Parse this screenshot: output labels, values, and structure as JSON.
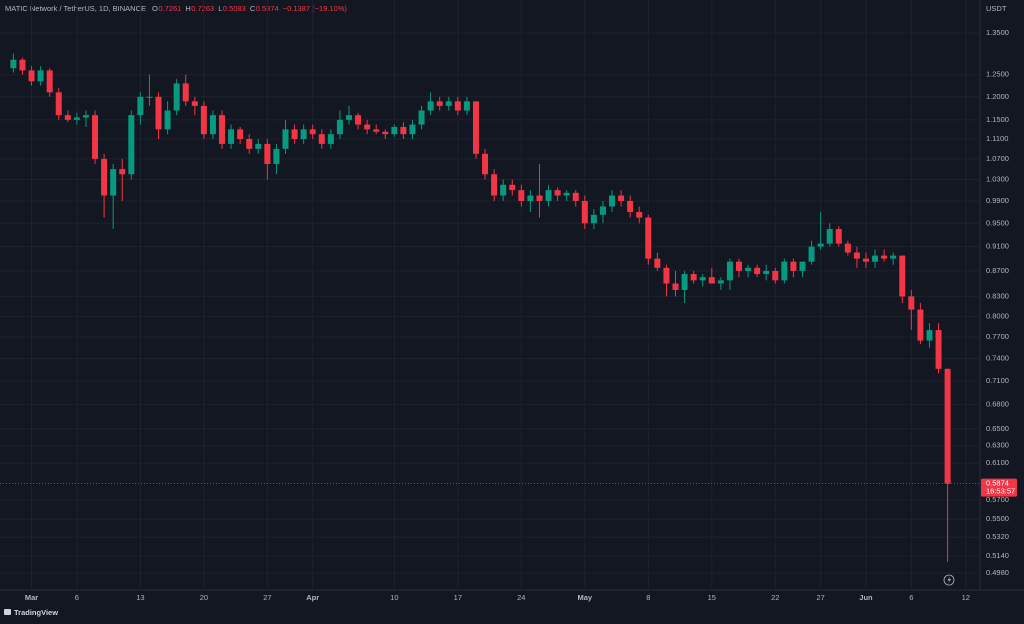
{
  "chart_data": {
    "type": "candlestick",
    "title": "MATIC Network / TetherUS, 1D, BINANCE",
    "ohlc_keys": [
      "O",
      "H",
      "L",
      "C"
    ],
    "change_label": "−0.1387 (−19.10%)",
    "currency": "USDT",
    "last_price_label": "0.5874",
    "countdown": "16:53:57",
    "brand": "TradingView",
    "up_color": "#089981",
    "down_color": "#f23645",
    "log_scale": true,
    "grid": true,
    "x": [
      "Feb 27",
      "Feb 28",
      "Mar 1",
      "Mar 2",
      "Mar 3",
      "Mar 4",
      "Mar 5",
      "Mar 6",
      "Mar 7",
      "Mar 8",
      "Mar 9",
      "Mar 10",
      "Mar 11",
      "Mar 12",
      "Mar 13",
      "Mar 14",
      "Mar 15",
      "Mar 16",
      "Mar 17",
      "Mar 18",
      "Mar 19",
      "Mar 20",
      "Mar 21",
      "Mar 22",
      "Mar 23",
      "Mar 24",
      "Mar 25",
      "Mar 26",
      "Mar 27",
      "Mar 28",
      "Mar 29",
      "Mar 30",
      "Mar 31",
      "Apr 1",
      "Apr 2",
      "Apr 3",
      "Apr 4",
      "Apr 5",
      "Apr 6",
      "Apr 7",
      "Apr 8",
      "Apr 9",
      "Apr 10",
      "Apr 11",
      "Apr 12",
      "Apr 13",
      "Apr 14",
      "Apr 15",
      "Apr 16",
      "Apr 17",
      "Apr 18",
      "Apr 19",
      "Apr 20",
      "Apr 21",
      "Apr 22",
      "Apr 23",
      "Apr 24",
      "Apr 25",
      "Apr 26",
      "Apr 27",
      "Apr 28",
      "Apr 29",
      "Apr 30",
      "May 1",
      "May 2",
      "May 3",
      "May 4",
      "May 5",
      "May 6",
      "May 7",
      "May 8",
      "May 9",
      "May 10",
      "May 11",
      "May 12",
      "May 13",
      "May 14",
      "May 15",
      "May 16",
      "May 17",
      "May 18",
      "May 19",
      "May 20",
      "May 21",
      "May 22",
      "May 23",
      "May 24",
      "May 25",
      "May 26",
      "May 27",
      "May 28",
      "May 29",
      "May 30",
      "May 31",
      "Jun 1",
      "Jun 2",
      "Jun 3",
      "Jun 4",
      "Jun 5",
      "Jun 6",
      "Jun 7",
      "Jun 8",
      "Jun 9",
      "Jun 10"
    ],
    "open": [
      1.265,
      1.285,
      1.26,
      1.235,
      1.26,
      1.21,
      1.16,
      1.15,
      1.155,
      1.16,
      1.07,
      1.0,
      1.05,
      1.04,
      1.16,
      1.2,
      1.2,
      1.13,
      1.17,
      1.23,
      1.19,
      1.18,
      1.12,
      1.16,
      1.1,
      1.13,
      1.11,
      1.09,
      1.1,
      1.06,
      1.09,
      1.13,
      1.11,
      1.13,
      1.12,
      1.1,
      1.12,
      1.15,
      1.16,
      1.14,
      1.13,
      1.125,
      1.12,
      1.135,
      1.12,
      1.14,
      1.17,
      1.19,
      1.18,
      1.19,
      1.17,
      1.19,
      1.08,
      1.04,
      1.0,
      1.02,
      1.01,
      0.99,
      1.0,
      0.99,
      1.01,
      1.0,
      1.005,
      0.99,
      0.95,
      0.965,
      0.98,
      1.0,
      0.99,
      0.97,
      0.96,
      0.89,
      0.875,
      0.85,
      0.84,
      0.865,
      0.855,
      0.86,
      0.85,
      0.855,
      0.885,
      0.87,
      0.875,
      0.865,
      0.87,
      0.855,
      0.885,
      0.87,
      0.885,
      0.91,
      0.915,
      0.94,
      0.915,
      0.9,
      0.89,
      0.885,
      0.895,
      0.89,
      0.895,
      0.83,
      0.81,
      0.765,
      0.78,
      0.7261
    ],
    "high": [
      1.3,
      1.29,
      1.27,
      1.27,
      1.265,
      1.22,
      1.17,
      1.165,
      1.17,
      1.17,
      1.08,
      1.06,
      1.07,
      1.17,
      1.21,
      1.25,
      1.21,
      1.19,
      1.24,
      1.25,
      1.2,
      1.19,
      1.17,
      1.17,
      1.14,
      1.135,
      1.12,
      1.11,
      1.11,
      1.1,
      1.15,
      1.14,
      1.14,
      1.14,
      1.13,
      1.13,
      1.17,
      1.18,
      1.165,
      1.15,
      1.14,
      1.13,
      1.14,
      1.145,
      1.15,
      1.18,
      1.21,
      1.2,
      1.2,
      1.2,
      1.2,
      1.19,
      1.09,
      1.05,
      1.03,
      1.03,
      1.02,
      1.01,
      1.06,
      1.02,
      1.015,
      1.01,
      1.01,
      1.0,
      0.975,
      0.99,
      1.01,
      1.01,
      1.0,
      0.98,
      0.965,
      0.9,
      0.88,
      0.87,
      0.87,
      0.87,
      0.865,
      0.875,
      0.86,
      0.89,
      0.89,
      0.88,
      0.88,
      0.88,
      0.875,
      0.89,
      0.89,
      0.885,
      0.92,
      0.97,
      0.95,
      0.945,
      0.92,
      0.91,
      0.9,
      0.905,
      0.905,
      0.9,
      0.895,
      0.84,
      0.82,
      0.79,
      0.79,
      0.7263
    ],
    "low": [
      1.255,
      1.25,
      1.225,
      1.225,
      1.2,
      1.15,
      1.145,
      1.14,
      1.135,
      1.06,
      0.96,
      0.94,
      0.99,
      1.03,
      1.14,
      1.18,
      1.11,
      1.12,
      1.16,
      1.18,
      1.16,
      1.11,
      1.11,
      1.09,
      1.09,
      1.1,
      1.08,
      1.08,
      1.03,
      1.04,
      1.08,
      1.1,
      1.1,
      1.11,
      1.09,
      1.09,
      1.11,
      1.14,
      1.13,
      1.12,
      1.12,
      1.11,
      1.115,
      1.11,
      1.11,
      1.13,
      1.16,
      1.17,
      1.17,
      1.16,
      1.16,
      1.07,
      1.03,
      0.99,
      0.99,
      1.0,
      0.98,
      0.97,
      0.96,
      0.98,
      0.99,
      0.99,
      0.98,
      0.94,
      0.94,
      0.95,
      0.97,
      0.98,
      0.96,
      0.95,
      0.88,
      0.87,
      0.83,
      0.83,
      0.82,
      0.85,
      0.845,
      0.85,
      0.84,
      0.84,
      0.86,
      0.86,
      0.86,
      0.855,
      0.85,
      0.85,
      0.86,
      0.86,
      0.88,
      0.905,
      0.91,
      0.91,
      0.895,
      0.875,
      0.875,
      0.875,
      0.885,
      0.88,
      0.82,
      0.78,
      0.76,
      0.755,
      0.72,
      0.5083
    ],
    "close": [
      1.285,
      1.26,
      1.235,
      1.26,
      1.21,
      1.16,
      1.15,
      1.155,
      1.16,
      1.07,
      1.0,
      1.05,
      1.04,
      1.16,
      1.2,
      1.2,
      1.13,
      1.17,
      1.23,
      1.19,
      1.18,
      1.12,
      1.16,
      1.1,
      1.13,
      1.11,
      1.09,
      1.1,
      1.06,
      1.09,
      1.13,
      1.11,
      1.13,
      1.12,
      1.1,
      1.12,
      1.15,
      1.16,
      1.14,
      1.13,
      1.125,
      1.12,
      1.135,
      1.12,
      1.14,
      1.17,
      1.19,
      1.18,
      1.19,
      1.17,
      1.19,
      1.08,
      1.04,
      1.0,
      1.02,
      1.01,
      0.99,
      1.0,
      0.99,
      1.01,
      1.0,
      1.005,
      0.99,
      0.95,
      0.965,
      0.98,
      1.0,
      0.99,
      0.97,
      0.96,
      0.89,
      0.875,
      0.85,
      0.84,
      0.865,
      0.855,
      0.86,
      0.85,
      0.855,
      0.885,
      0.87,
      0.875,
      0.865,
      0.87,
      0.855,
      0.885,
      0.87,
      0.885,
      0.91,
      0.915,
      0.94,
      0.915,
      0.9,
      0.89,
      0.885,
      0.895,
      0.89,
      0.895,
      0.83,
      0.81,
      0.765,
      0.78,
      0.7261,
      0.5874
    ],
    "ylim": [
      0.4826,
      1.388
    ],
    "yticks": [
      {
        "value": 1.35,
        "label": "1.3500"
      },
      {
        "value": 1.25,
        "label": "1.2500"
      },
      {
        "value": 1.2,
        "label": "1.2000"
      },
      {
        "value": 1.15,
        "label": "1.1500"
      },
      {
        "value": 1.11,
        "label": "1.1100"
      },
      {
        "value": 1.07,
        "label": "1.0700"
      },
      {
        "value": 1.03,
        "label": "1.0300"
      },
      {
        "value": 0.99,
        "label": "0.9900"
      },
      {
        "value": 0.95,
        "label": "0.9500"
      },
      {
        "value": 0.91,
        "label": "0.9100"
      },
      {
        "value": 0.87,
        "label": "0.8700"
      },
      {
        "value": 0.83,
        "label": "0.8300"
      },
      {
        "value": 0.8,
        "label": "0.8000"
      },
      {
        "value": 0.77,
        "label": "0.7700"
      },
      {
        "value": 0.74,
        "label": "0.7400"
      },
      {
        "value": 0.71,
        "label": "0.7100"
      },
      {
        "value": 0.68,
        "label": "0.6800"
      },
      {
        "value": 0.65,
        "label": "0.6500"
      },
      {
        "value": 0.63,
        "label": "0.6300"
      },
      {
        "value": 0.61,
        "label": "0.6100"
      },
      {
        "value": 0.57,
        "label": "0.5700"
      },
      {
        "value": 0.55,
        "label": "0.5500"
      },
      {
        "value": 0.532,
        "label": "0.5320"
      },
      {
        "value": 0.514,
        "label": "0.5140"
      },
      {
        "value": 0.498,
        "label": "0.4980"
      }
    ],
    "xticks": [
      {
        "value": "Mar 1",
        "label": "Mar"
      },
      {
        "value": "Mar 6",
        "label": "6"
      },
      {
        "value": "Mar 13",
        "label": "13"
      },
      {
        "value": "Mar 20",
        "label": "20"
      },
      {
        "value": "Mar 27",
        "label": "27"
      },
      {
        "value": "Apr 1",
        "label": "Apr"
      },
      {
        "value": "Apr 10",
        "label": "10"
      },
      {
        "value": "Apr 17",
        "label": "17"
      },
      {
        "value": "Apr 24",
        "label": "24"
      },
      {
        "value": "May 1",
        "label": "May"
      },
      {
        "value": "May 8",
        "label": "8"
      },
      {
        "value": "May 15",
        "label": "15"
      },
      {
        "value": "May 22",
        "label": "22"
      },
      {
        "value": "May 27",
        "label": "27"
      },
      {
        "value": "Jun 1",
        "label": "Jun"
      },
      {
        "value": "Jun 6",
        "label": "6"
      },
      {
        "value": "Jun 12",
        "label": "12"
      }
    ]
  }
}
